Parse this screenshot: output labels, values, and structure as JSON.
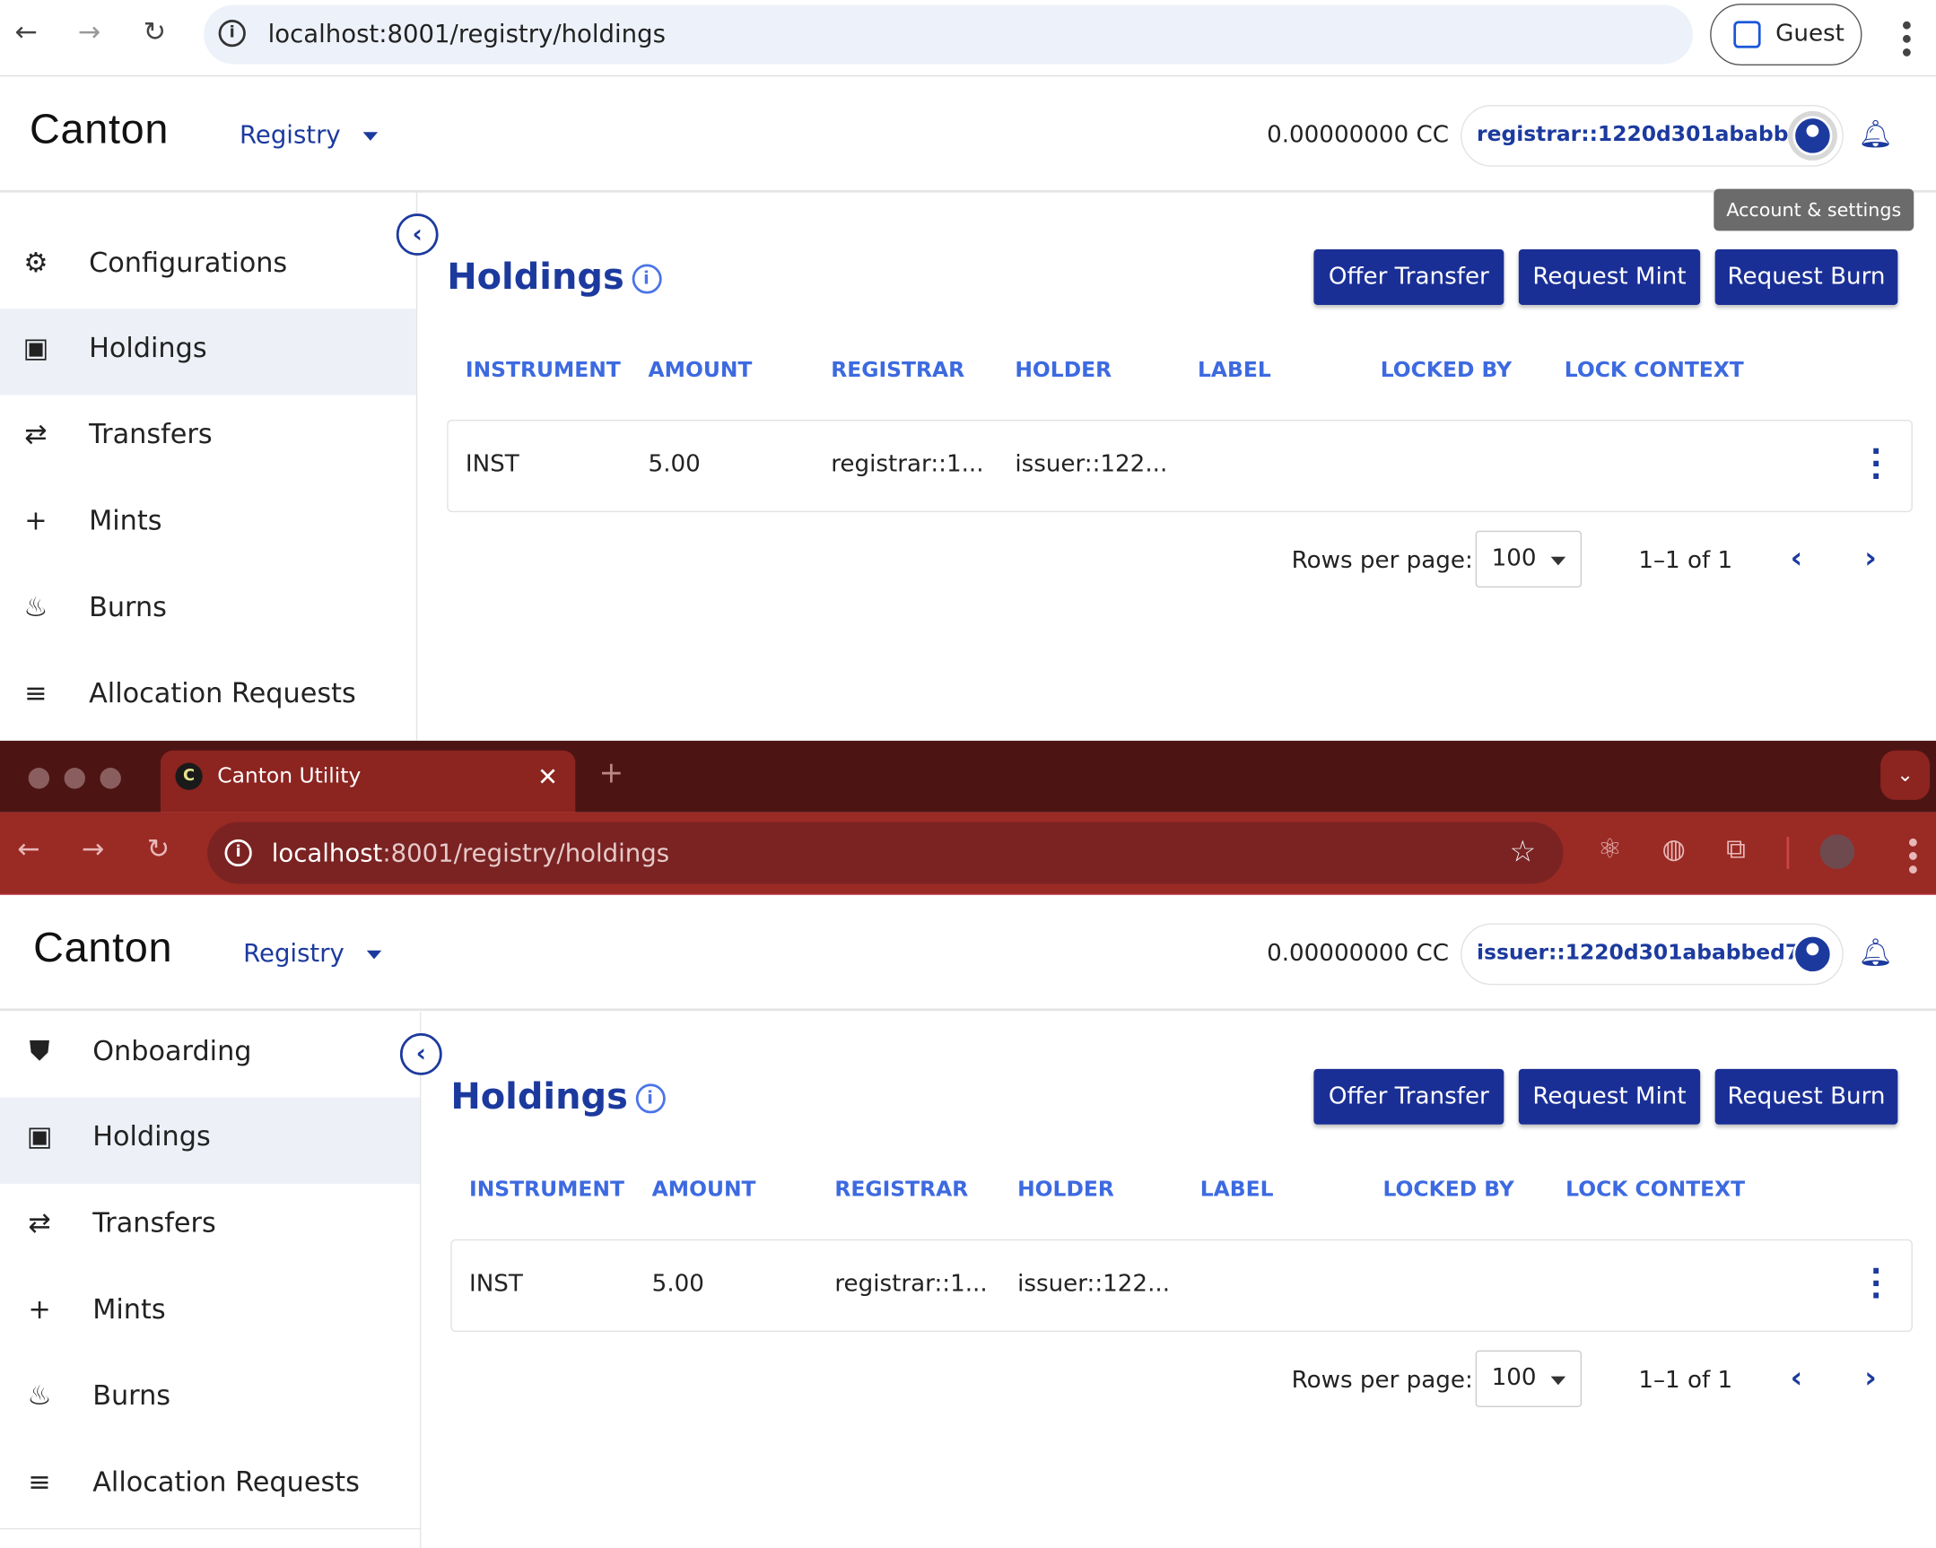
{
  "top_window": {
    "browser": {
      "url": "localhost:8001/registry/holdings",
      "profile_label": "Guest"
    },
    "header": {
      "logo": "Canton",
      "app_menu": "Registry",
      "balance": "0.00000000 CC",
      "party": "registrar::1220d301ababbe...",
      "tooltip": "Account & settings"
    },
    "sidebar": {
      "items": [
        {
          "label": "Configurations",
          "icon": "gear-icon"
        },
        {
          "label": "Holdings",
          "icon": "wallet-icon",
          "active": true
        },
        {
          "label": "Transfers",
          "icon": "transfer-arrows-icon"
        },
        {
          "label": "Mints",
          "icon": "plus-icon"
        },
        {
          "label": "Burns",
          "icon": "flame-icon"
        },
        {
          "label": "Allocation Requests",
          "icon": "playlist-add-icon"
        }
      ]
    },
    "main": {
      "title": "Holdings",
      "buttons": [
        "Offer Transfer",
        "Request Mint",
        "Request Burn"
      ],
      "columns": [
        "INSTRUMENT",
        "AMOUNT",
        "REGISTRAR",
        "HOLDER",
        "LABEL",
        "LOCKED BY",
        "LOCK CONTEXT"
      ],
      "rows": [
        [
          "INST",
          "5.00",
          "registrar::1...",
          "issuer::122...",
          "",
          "",
          ""
        ]
      ],
      "rows_per_page_label": "Rows per page:",
      "rows_per_page": "100",
      "range": "1–1 of 1"
    }
  },
  "bottom_window": {
    "browser": {
      "tab_title": "Canton Utility",
      "favicon": "C",
      "url_host": "localhost",
      "url_rest": ":8001/registry/holdings",
      "theme_color": "#9a2a24"
    },
    "header": {
      "logo": "Canton",
      "app_menu": "Registry",
      "balance": "0.00000000 CC",
      "party": "issuer::1220d301ababbed7..."
    },
    "sidebar": {
      "items": [
        {
          "label": "Onboarding",
          "icon": "shield-person-icon"
        },
        {
          "label": "Holdings",
          "icon": "wallet-icon",
          "active": true
        },
        {
          "label": "Transfers",
          "icon": "transfer-arrows-icon"
        },
        {
          "label": "Mints",
          "icon": "plus-icon"
        },
        {
          "label": "Burns",
          "icon": "flame-icon"
        },
        {
          "label": "Allocation Requests",
          "icon": "playlist-add-icon"
        }
      ]
    },
    "main": {
      "title": "Holdings",
      "buttons": [
        "Offer Transfer",
        "Request Mint",
        "Request Burn"
      ],
      "columns": [
        "INSTRUMENT",
        "AMOUNT",
        "REGISTRAR",
        "HOLDER",
        "LABEL",
        "LOCKED BY",
        "LOCK CONTEXT"
      ],
      "rows": [
        [
          "INST",
          "5.00",
          "registrar::1...",
          "issuer::122...",
          "",
          "",
          ""
        ]
      ],
      "rows_per_page_label": "Rows per page:",
      "rows_per_page": "100",
      "range": "1–1 of 1"
    }
  },
  "colors": {
    "primary": "#1a2f96",
    "header_text": "#3d6ae0",
    "active_bg": "#edf0f7"
  }
}
